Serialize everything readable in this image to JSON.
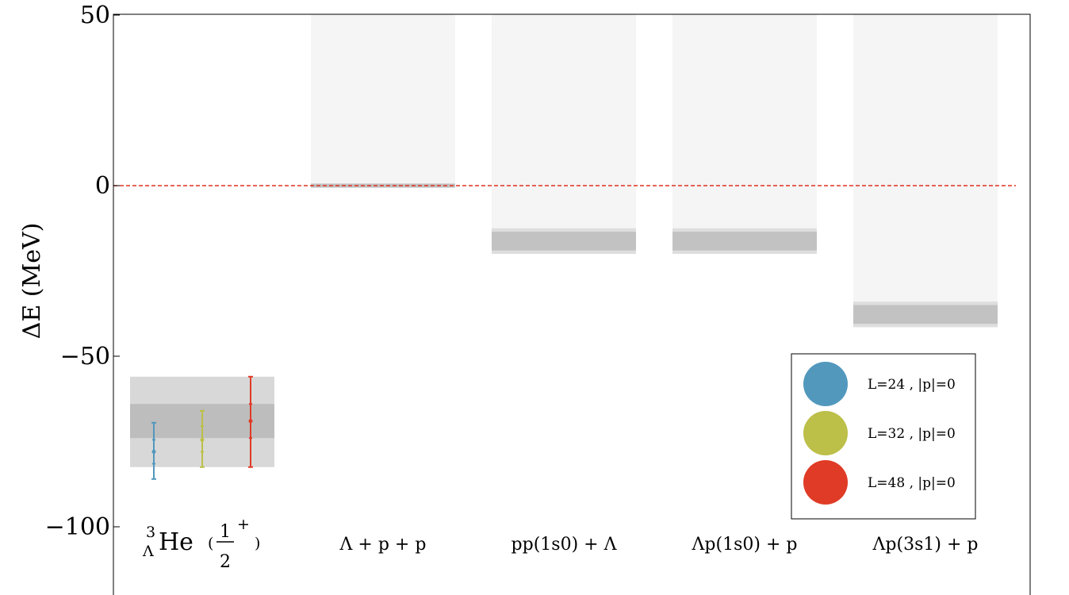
{
  "chart_data": {
    "type": "bar",
    "ylabel": "ΔE  (MeV)",
    "ylim": [
      -120,
      50
    ],
    "y_ticks": [
      {
        "value": 50,
        "label": "50"
      },
      {
        "value": 0,
        "label": "0"
      },
      {
        "value": -50,
        "label": "−50"
      },
      {
        "value": -100,
        "label": "−100"
      }
    ],
    "reference_line": {
      "y": 0,
      "color": "#e03020",
      "style": "dashed"
    },
    "colors": {
      "band_outer": "#d8d8d8",
      "band_inner": "#bdbdbd",
      "threshold_region": "#f5f5f5",
      "threshold_band_outer": "#dedede",
      "threshold_band_inner": "#c2c2c2"
    },
    "categories": [
      {
        "label_parts": {
          "pre_sup": "3",
          "pre_sub": "Λ",
          "main": "He",
          "open": "(",
          "frac_num": "1",
          "frac_den": "2",
          "sup": "+",
          "close": ")"
        }
      },
      {
        "label": "Λ + p + p"
      },
      {
        "label": "pp(1s0) + Λ"
      },
      {
        "label": "Λp(1s0) + p"
      },
      {
        "label": "Λp(3s1) + p"
      }
    ],
    "bound_state": {
      "category_index": 0,
      "band_outer": [
        -82.5,
        -56
      ],
      "band_inner": [
        -74,
        -64
      ]
    },
    "thresholds": [
      {
        "category_index": 1,
        "band_outer": [
          -0.6,
          0.6
        ],
        "band_inner": [
          -0.6,
          0.6
        ]
      },
      {
        "category_index": 2,
        "band_outer": [
          -20,
          -12.5
        ],
        "band_inner": [
          -19,
          -13.5
        ]
      },
      {
        "category_index": 3,
        "band_outer": [
          -20,
          -12.5
        ],
        "band_inner": [
          -19,
          -13.5
        ]
      },
      {
        "category_index": 4,
        "band_outer": [
          -41.5,
          -34
        ],
        "band_inner": [
          -40.5,
          -35
        ]
      }
    ],
    "series": [
      {
        "name": "L=24 , |p|=0",
        "color": "#5298bd",
        "category_index": 0,
        "y": -78,
        "stat": [
          -81.5,
          -74.5
        ],
        "total": [
          -86,
          -69.5
        ]
      },
      {
        "name": "L=32 , |p|=0",
        "color": "#bcbf48",
        "category_index": 0,
        "y": -74.5,
        "stat": [
          -78,
          -70.5
        ],
        "total": [
          -82.5,
          -66
        ]
      },
      {
        "name": "L=48 , |p|=0",
        "color": "#df3b26",
        "category_index": 0,
        "y": -69,
        "stat": [
          -74,
          -64
        ],
        "total": [
          -82.5,
          -56
        ]
      }
    ],
    "legend": {
      "position": "bottom-right"
    },
    "grid": false
  }
}
